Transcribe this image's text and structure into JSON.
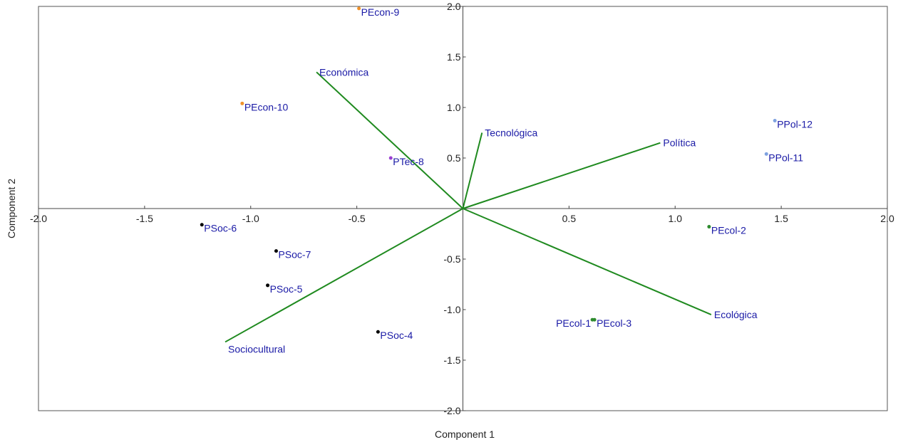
{
  "chart_data": {
    "type": "scatter",
    "subtype": "biplot",
    "xlabel": "Component 1",
    "ylabel": "Component 2",
    "xlim": [
      -2.0,
      2.0
    ],
    "ylim": [
      -2.0,
      2.0
    ],
    "x_ticks": [
      -2.0,
      -1.5,
      -1.0,
      -0.5,
      0.5,
      1.0,
      1.5,
      2.0
    ],
    "y_ticks": [
      2.0,
      1.5,
      1.0,
      0.5,
      -0.5,
      -1.0,
      -1.5,
      -2.0
    ],
    "x_tick_labels": [
      "-2.0",
      "-1.5",
      "-1.0",
      "-0.5",
      "0.5",
      "1.0",
      "1.5",
      "2.0"
    ],
    "y_tick_labels": [
      "2.0",
      "1.5",
      "1.0",
      "0.5",
      "-0.5",
      "-1.0",
      "-1.5",
      "-2.0"
    ],
    "grid": false,
    "points": [
      {
        "label": "PEcon-9",
        "x": -0.49,
        "y": 1.98,
        "color": "#f0922b"
      },
      {
        "label": "PEcon-10",
        "x": -1.04,
        "y": 1.04,
        "color": "#f0922b"
      },
      {
        "label": "PTec-8",
        "x": -0.34,
        "y": 0.5,
        "color": "#9b3fd1"
      },
      {
        "label": "PPol-12",
        "x": 1.47,
        "y": 0.87,
        "color": "#7fa2e0"
      },
      {
        "label": "PPol-11",
        "x": 1.43,
        "y": 0.54,
        "color": "#7fa2e0"
      },
      {
        "label": "PEcol-2",
        "x": 1.16,
        "y": -0.18,
        "color": "#2e8b2e"
      },
      {
        "label": "PEcol-1",
        "x": 0.61,
        "y": -1.1,
        "color": "#2e8b2e"
      },
      {
        "label": "PEcol-3",
        "x": 0.62,
        "y": -1.1,
        "color": "#2e8b2e"
      },
      {
        "label": "PSoc-6",
        "x": -1.23,
        "y": -0.16,
        "color": "#000000"
      },
      {
        "label": "PSoc-7",
        "x": -0.88,
        "y": -0.42,
        "color": "#000000"
      },
      {
        "label": "PSoc-5",
        "x": -0.92,
        "y": -0.76,
        "color": "#000000"
      },
      {
        "label": "PSoc-4",
        "x": -0.4,
        "y": -1.22,
        "color": "#000000"
      }
    ],
    "vectors": [
      {
        "label": "Económica",
        "x": -0.69,
        "y": 1.35
      },
      {
        "label": "Tecnológica",
        "x": 0.09,
        "y": 0.75
      },
      {
        "label": "Política",
        "x": 0.93,
        "y": 0.65
      },
      {
        "label": "Ecológica",
        "x": 1.17,
        "y": -1.05
      },
      {
        "label": "Sociocultural",
        "x": -1.12,
        "y": -1.32
      }
    ],
    "vector_color": "#1f8a1f",
    "label_color": "#1a1aa6"
  }
}
